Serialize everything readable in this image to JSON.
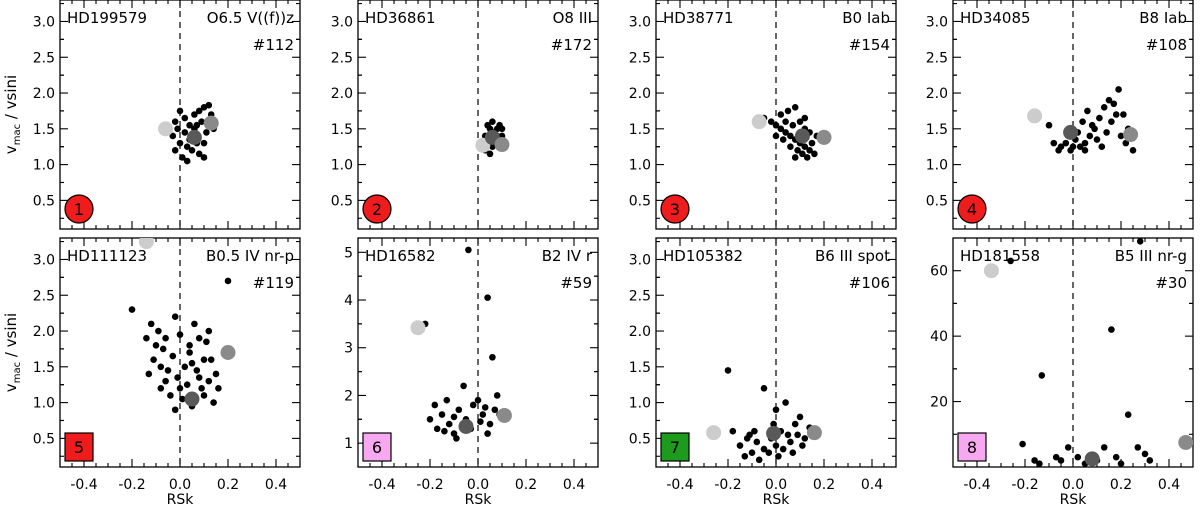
{
  "colors": {
    "red": "#ee1c1c",
    "magenta": "#f7a8f0",
    "green": "#1c9b1c",
    "light_gray": "#cccccc",
    "mid_gray": "#8a8a8a",
    "dark_gray": "#595959"
  },
  "axes": {
    "xlabel": "RSk",
    "ylabel_main": "v",
    "ylabel_sub": "mac",
    "ylabel_rest": " / vsini",
    "xlim": [
      -0.5,
      0.5
    ],
    "xticks": [
      -0.4,
      -0.2,
      0.0,
      0.2,
      0.4
    ],
    "xtick_labels": [
      "-0.4",
      "-0.2",
      "0.0",
      "0.2",
      "0.4"
    ]
  },
  "chart_data": [
    {
      "type": "scatter",
      "star": "HD199579",
      "sptype": "O6.5 V((f))z",
      "count_label": "#112",
      "badge": {
        "number": "1",
        "shape": "circle",
        "color": "red"
      },
      "ylim": [
        0.1,
        3.3
      ],
      "yticks": [
        0.5,
        1.0,
        1.5,
        2.0,
        2.5,
        3.0
      ],
      "ytick_labels": [
        "0.5",
        "1.0",
        "1.5",
        "2.0",
        "2.5",
        "3.0"
      ],
      "points": [
        [
          -0.02,
          1.2
        ],
        [
          0.0,
          1.3
        ],
        [
          0.02,
          1.45
        ],
        [
          0.04,
          1.55
        ],
        [
          0.06,
          1.7
        ],
        [
          0.08,
          1.75
        ],
        [
          0.1,
          1.8
        ],
        [
          0.12,
          1.83
        ],
        [
          -0.01,
          1.5
        ],
        [
          0.03,
          1.25
        ],
        [
          0.05,
          1.4
        ],
        [
          0.07,
          1.3
        ],
        [
          0.09,
          1.6
        ],
        [
          0.11,
          1.45
        ],
        [
          0.01,
          1.1
        ],
        [
          0.03,
          1.05
        ],
        [
          0.05,
          1.2
        ],
        [
          0.08,
          1.15
        ],
        [
          0.1,
          1.3
        ],
        [
          -0.02,
          1.6
        ],
        [
          0.0,
          1.75
        ],
        [
          0.06,
          1.5
        ],
        [
          0.12,
          1.6
        ],
        [
          0.14,
          1.5
        ],
        [
          0.02,
          1.65
        ],
        [
          0.04,
          1.35
        ],
        [
          0.07,
          1.55
        ],
        [
          0.1,
          1.1
        ],
        [
          -0.03,
          1.4
        ],
        [
          0.13,
          1.7
        ]
      ],
      "markers": [
        {
          "x": -0.06,
          "y": 1.5,
          "color": "light_gray"
        },
        {
          "x": 0.06,
          "y": 1.38,
          "color": "dark_gray"
        },
        {
          "x": 0.13,
          "y": 1.58,
          "color": "mid_gray"
        }
      ]
    },
    {
      "type": "scatter",
      "star": "HD36861",
      "sptype": "O8 III",
      "count_label": "#172",
      "badge": {
        "number": "2",
        "shape": "circle",
        "color": "red"
      },
      "ylim": [
        0.1,
        3.3
      ],
      "yticks": [
        0.5,
        1.0,
        1.5,
        2.0,
        2.5,
        3.0
      ],
      "ytick_labels": [
        "0.5",
        "1.0",
        "1.5",
        "2.0",
        "2.5",
        "3.0"
      ],
      "points": [
        [
          0.03,
          1.2
        ],
        [
          0.04,
          1.35
        ],
        [
          0.05,
          1.5
        ],
        [
          0.06,
          1.6
        ],
        [
          0.07,
          1.45
        ],
        [
          0.08,
          1.3
        ],
        [
          0.09,
          1.55
        ],
        [
          0.1,
          1.4
        ],
        [
          0.04,
          1.55
        ],
        [
          0.06,
          1.25
        ],
        [
          0.08,
          1.5
        ],
        [
          0.05,
          1.15
        ],
        [
          0.07,
          1.35
        ],
        [
          0.09,
          1.25
        ],
        [
          0.1,
          1.5
        ],
        [
          0.03,
          1.4
        ],
        [
          0.06,
          1.45
        ],
        [
          0.08,
          1.4
        ]
      ],
      "markers": [
        {
          "x": 0.02,
          "y": 1.27,
          "color": "light_gray"
        },
        {
          "x": 0.06,
          "y": 1.38,
          "color": "dark_gray"
        },
        {
          "x": 0.1,
          "y": 1.28,
          "color": "mid_gray"
        }
      ]
    },
    {
      "type": "scatter",
      "star": "HD38771",
      "sptype": "B0 Iab",
      "count_label": "#154",
      "badge": {
        "number": "3",
        "shape": "circle",
        "color": "red"
      },
      "ylim": [
        0.1,
        3.3
      ],
      "yticks": [
        0.5,
        1.0,
        1.5,
        2.0,
        2.5,
        3.0
      ],
      "ytick_labels": [
        "0.5",
        "1.0",
        "1.5",
        "2.0",
        "2.5",
        "3.0"
      ],
      "points": [
        [
          -0.05,
          1.65
        ],
        [
          -0.02,
          1.6
        ],
        [
          0.0,
          1.55
        ],
        [
          0.02,
          1.5
        ],
        [
          0.04,
          1.45
        ],
        [
          0.06,
          1.4
        ],
        [
          0.08,
          1.35
        ],
        [
          0.1,
          1.3
        ],
        [
          0.12,
          1.25
        ],
        [
          0.14,
          1.2
        ],
        [
          0.16,
          1.15
        ],
        [
          0.02,
          1.7
        ],
        [
          0.05,
          1.75
        ],
        [
          0.08,
          1.8
        ],
        [
          0.1,
          1.6
        ],
        [
          0.12,
          1.5
        ],
        [
          0.14,
          1.45
        ],
        [
          0.15,
          1.3
        ],
        [
          0.06,
          1.25
        ],
        [
          0.09,
          1.2
        ],
        [
          0.11,
          1.15
        ],
        [
          0.13,
          1.1
        ],
        [
          0.03,
          1.35
        ],
        [
          0.07,
          1.55
        ],
        [
          0.1,
          1.45
        ],
        [
          0.04,
          1.6
        ],
        [
          0.17,
          1.4
        ],
        [
          0.0,
          1.4
        ],
        [
          0.12,
          1.65
        ],
        [
          0.08,
          1.1
        ]
      ],
      "markers": [
        {
          "x": -0.07,
          "y": 1.6,
          "color": "light_gray"
        },
        {
          "x": 0.11,
          "y": 1.4,
          "color": "dark_gray"
        },
        {
          "x": 0.2,
          "y": 1.38,
          "color": "mid_gray"
        }
      ]
    },
    {
      "type": "scatter",
      "star": "HD34085",
      "sptype": "B8 Iab",
      "count_label": "#108",
      "badge": {
        "number": "4",
        "shape": "circle",
        "color": "red"
      },
      "ylim": [
        0.1,
        3.3
      ],
      "yticks": [
        0.5,
        1.0,
        1.5,
        2.0,
        2.5,
        3.0
      ],
      "ytick_labels": [
        "0.5",
        "1.0",
        "1.5",
        "2.0",
        "2.5",
        "3.0"
      ],
      "points": [
        [
          -0.05,
          1.25
        ],
        [
          -0.03,
          1.3
        ],
        [
          -0.01,
          1.2
        ],
        [
          0.01,
          1.35
        ],
        [
          0.03,
          1.25
        ],
        [
          0.05,
          1.3
        ],
        [
          0.07,
          1.4
        ],
        [
          0.09,
          1.5
        ],
        [
          0.11,
          1.65
        ],
        [
          0.13,
          1.8
        ],
        [
          0.15,
          1.9
        ],
        [
          0.17,
          1.85
        ],
        [
          0.19,
          2.05
        ],
        [
          0.21,
          1.7
        ],
        [
          0.23,
          1.5
        ],
        [
          0.25,
          1.2
        ],
        [
          -0.1,
          1.55
        ],
        [
          -0.08,
          1.3
        ],
        [
          -0.06,
          1.2
        ],
        [
          0.0,
          1.25
        ],
        [
          0.02,
          1.45
        ],
        [
          0.04,
          1.6
        ],
        [
          0.06,
          1.75
        ],
        [
          0.08,
          1.55
        ],
        [
          0.1,
          1.35
        ],
        [
          0.12,
          1.25
        ],
        [
          0.14,
          1.45
        ],
        [
          0.16,
          1.6
        ],
        [
          0.18,
          1.7
        ],
        [
          0.2,
          1.4
        ],
        [
          0.22,
          1.3
        ],
        [
          0.05,
          1.2
        ]
      ],
      "markers": [
        {
          "x": -0.16,
          "y": 1.68,
          "color": "light_gray"
        },
        {
          "x": -0.01,
          "y": 1.45,
          "color": "dark_gray"
        },
        {
          "x": 0.24,
          "y": 1.42,
          "color": "mid_gray"
        }
      ]
    },
    {
      "type": "scatter",
      "star": "HD111123",
      "sptype": "B0.5 IV nr-p",
      "count_label": "#119",
      "badge": {
        "number": "5",
        "shape": "square",
        "color": "red"
      },
      "ylim": [
        0.1,
        3.3
      ],
      "yticks": [
        0.5,
        1.0,
        1.5,
        2.0,
        2.5,
        3.0
      ],
      "ytick_labels": [
        "0.5",
        "1.0",
        "1.5",
        "2.0",
        "2.5",
        "3.0"
      ],
      "points": [
        [
          -0.12,
          2.1
        ],
        [
          -0.1,
          1.8
        ],
        [
          -0.08,
          1.5
        ],
        [
          -0.06,
          1.3
        ],
        [
          -0.04,
          1.1
        ],
        [
          -0.02,
          0.9
        ],
        [
          0.0,
          1.2
        ],
        [
          0.02,
          1.5
        ],
        [
          0.04,
          1.8
        ],
        [
          0.06,
          2.1
        ],
        [
          0.08,
          1.9
        ],
        [
          0.1,
          1.6
        ],
        [
          0.12,
          1.3
        ],
        [
          0.14,
          1.0
        ],
        [
          0.16,
          1.2
        ],
        [
          -0.11,
          1.6
        ],
        [
          -0.09,
          2.0
        ],
        [
          -0.07,
          1.75
        ],
        [
          -0.05,
          1.45
        ],
        [
          -0.03,
          1.65
        ],
        [
          -0.01,
          1.35
        ],
        [
          0.01,
          1.05
        ],
        [
          0.03,
          1.25
        ],
        [
          0.05,
          1.55
        ],
        [
          0.07,
          1.45
        ],
        [
          0.09,
          1.2
        ],
        [
          0.11,
          1.85
        ],
        [
          0.13,
          1.6
        ],
        [
          0.15,
          1.4
        ],
        [
          -0.14,
          1.9
        ],
        [
          -0.13,
          1.4
        ],
        [
          0.0,
          1.95
        ],
        [
          0.05,
          0.95
        ],
        [
          0.08,
          1.35
        ],
        [
          0.2,
          2.7
        ],
        [
          -0.2,
          2.3
        ],
        [
          -0.02,
          2.2
        ],
        [
          0.04,
          1.7
        ],
        [
          -0.06,
          1.9
        ],
        [
          0.1,
          1.1
        ],
        [
          0.12,
          2.0
        ],
        [
          -0.08,
          1.2
        ]
      ],
      "markers": [
        {
          "x": -0.14,
          "y": 3.25,
          "color": "light_gray"
        },
        {
          "x": 0.05,
          "y": 1.05,
          "color": "dark_gray"
        },
        {
          "x": 0.2,
          "y": 1.7,
          "color": "mid_gray"
        }
      ]
    },
    {
      "type": "scatter",
      "star": "HD16582",
      "sptype": "B2 IV r",
      "count_label": "#59",
      "badge": {
        "number": "6",
        "shape": "square",
        "color": "magenta"
      },
      "ylim": [
        0.5,
        5.3
      ],
      "yticks": [
        1,
        2,
        3,
        4,
        5
      ],
      "ytick_labels": [
        "1",
        "2",
        "3",
        "4",
        "5"
      ],
      "points": [
        [
          -0.2,
          1.5
        ],
        [
          -0.17,
          1.3
        ],
        [
          -0.15,
          1.6
        ],
        [
          -0.12,
          1.4
        ],
        [
          -0.1,
          1.2
        ],
        [
          -0.08,
          1.7
        ],
        [
          -0.05,
          1.5
        ],
        [
          -0.03,
          1.3
        ],
        [
          0.0,
          1.9
        ],
        [
          0.02,
          1.6
        ],
        [
          0.05,
          1.4
        ],
        [
          0.07,
          1.7
        ],
        [
          -0.18,
          1.8
        ],
        [
          -0.13,
          1.9
        ],
        [
          -0.09,
          1.1
        ],
        [
          -0.06,
          2.2
        ],
        [
          -0.02,
          1.8
        ],
        [
          0.01,
          1.45
        ],
        [
          0.04,
          1.2
        ],
        [
          0.08,
          2.0
        ],
        [
          -0.04,
          5.05
        ],
        [
          0.04,
          4.05
        ],
        [
          -0.22,
          3.5
        ],
        [
          0.06,
          2.8
        ],
        [
          -0.1,
          1.55
        ],
        [
          0.03,
          1.75
        ],
        [
          -0.14,
          1.25
        ],
        [
          0.09,
          1.6
        ]
      ],
      "markers": [
        {
          "x": -0.25,
          "y": 3.42,
          "color": "light_gray"
        },
        {
          "x": -0.05,
          "y": 1.35,
          "color": "dark_gray"
        },
        {
          "x": 0.11,
          "y": 1.58,
          "color": "mid_gray"
        }
      ]
    },
    {
      "type": "scatter",
      "star": "HD105382",
      "sptype": "B6 III spot",
      "count_label": "#106",
      "badge": {
        "number": "7",
        "shape": "square",
        "color": "green"
      },
      "ylim": [
        0.1,
        3.3
      ],
      "yticks": [
        0.5,
        1.0,
        1.5,
        2.0,
        2.5,
        3.0
      ],
      "ytick_labels": [
        "0.5",
        "1.0",
        "1.5",
        "2.0",
        "2.5",
        "3.0"
      ],
      "points": [
        [
          -0.15,
          0.4
        ],
        [
          -0.12,
          0.5
        ],
        [
          -0.1,
          0.3
        ],
        [
          -0.08,
          0.45
        ],
        [
          -0.05,
          0.35
        ],
        [
          -0.02,
          0.5
        ],
        [
          0.0,
          0.4
        ],
        [
          0.02,
          0.6
        ],
        [
          0.05,
          0.55
        ],
        [
          0.08,
          0.7
        ],
        [
          0.1,
          0.8
        ],
        [
          0.12,
          0.5
        ],
        [
          0.14,
          0.65
        ],
        [
          -0.13,
          0.25
        ],
        [
          -0.07,
          0.2
        ],
        [
          -0.03,
          0.3
        ],
        [
          0.03,
          0.35
        ],
        [
          0.06,
          0.45
        ],
        [
          0.09,
          0.55
        ],
        [
          -0.18,
          0.6
        ],
        [
          -0.2,
          1.45
        ],
        [
          -0.05,
          1.2
        ],
        [
          0.0,
          0.9
        ],
        [
          0.04,
          1.0
        ],
        [
          -0.01,
          0.7
        ],
        [
          -0.09,
          0.6
        ],
        [
          0.07,
          0.3
        ],
        [
          0.11,
          0.4
        ],
        [
          -0.11,
          0.55
        ],
        [
          0.01,
          0.25
        ]
      ],
      "markers": [
        {
          "x": -0.26,
          "y": 0.58,
          "color": "light_gray"
        },
        {
          "x": -0.01,
          "y": 0.57,
          "color": "dark_gray"
        },
        {
          "x": 0.16,
          "y": 0.58,
          "color": "mid_gray"
        }
      ]
    },
    {
      "type": "scatter",
      "star": "HD181558",
      "sptype": "B5 III nr-g",
      "count_label": "#30",
      "badge": {
        "number": "8",
        "shape": "square",
        "color": "magenta"
      },
      "ylim": [
        0,
        70
      ],
      "yticks": [
        20,
        40,
        60
      ],
      "ytick_labels": [
        "20",
        "40",
        "60"
      ],
      "points": [
        [
          -0.26,
          63
        ],
        [
          0.28,
          69
        ],
        [
          0.16,
          42
        ],
        [
          -0.13,
          28
        ],
        [
          0.23,
          16
        ],
        [
          -0.21,
          7
        ],
        [
          -0.02,
          6
        ],
        [
          0.13,
          6
        ],
        [
          -0.07,
          3
        ],
        [
          0.18,
          3
        ],
        [
          -0.14,
          1
        ],
        [
          0.05,
          1
        ],
        [
          0.3,
          4
        ],
        [
          0.32,
          2
        ],
        [
          -0.05,
          2
        ],
        [
          0.02,
          3
        ],
        [
          0.2,
          1
        ],
        [
          -0.16,
          2
        ],
        [
          0.27,
          6
        ],
        [
          0.1,
          2
        ]
      ],
      "markers": [
        {
          "x": -0.34,
          "y": 60,
          "color": "light_gray"
        },
        {
          "x": 0.08,
          "y": 2.5,
          "color": "dark_gray"
        },
        {
          "x": 0.47,
          "y": 7.5,
          "color": "mid_gray"
        }
      ]
    }
  ]
}
